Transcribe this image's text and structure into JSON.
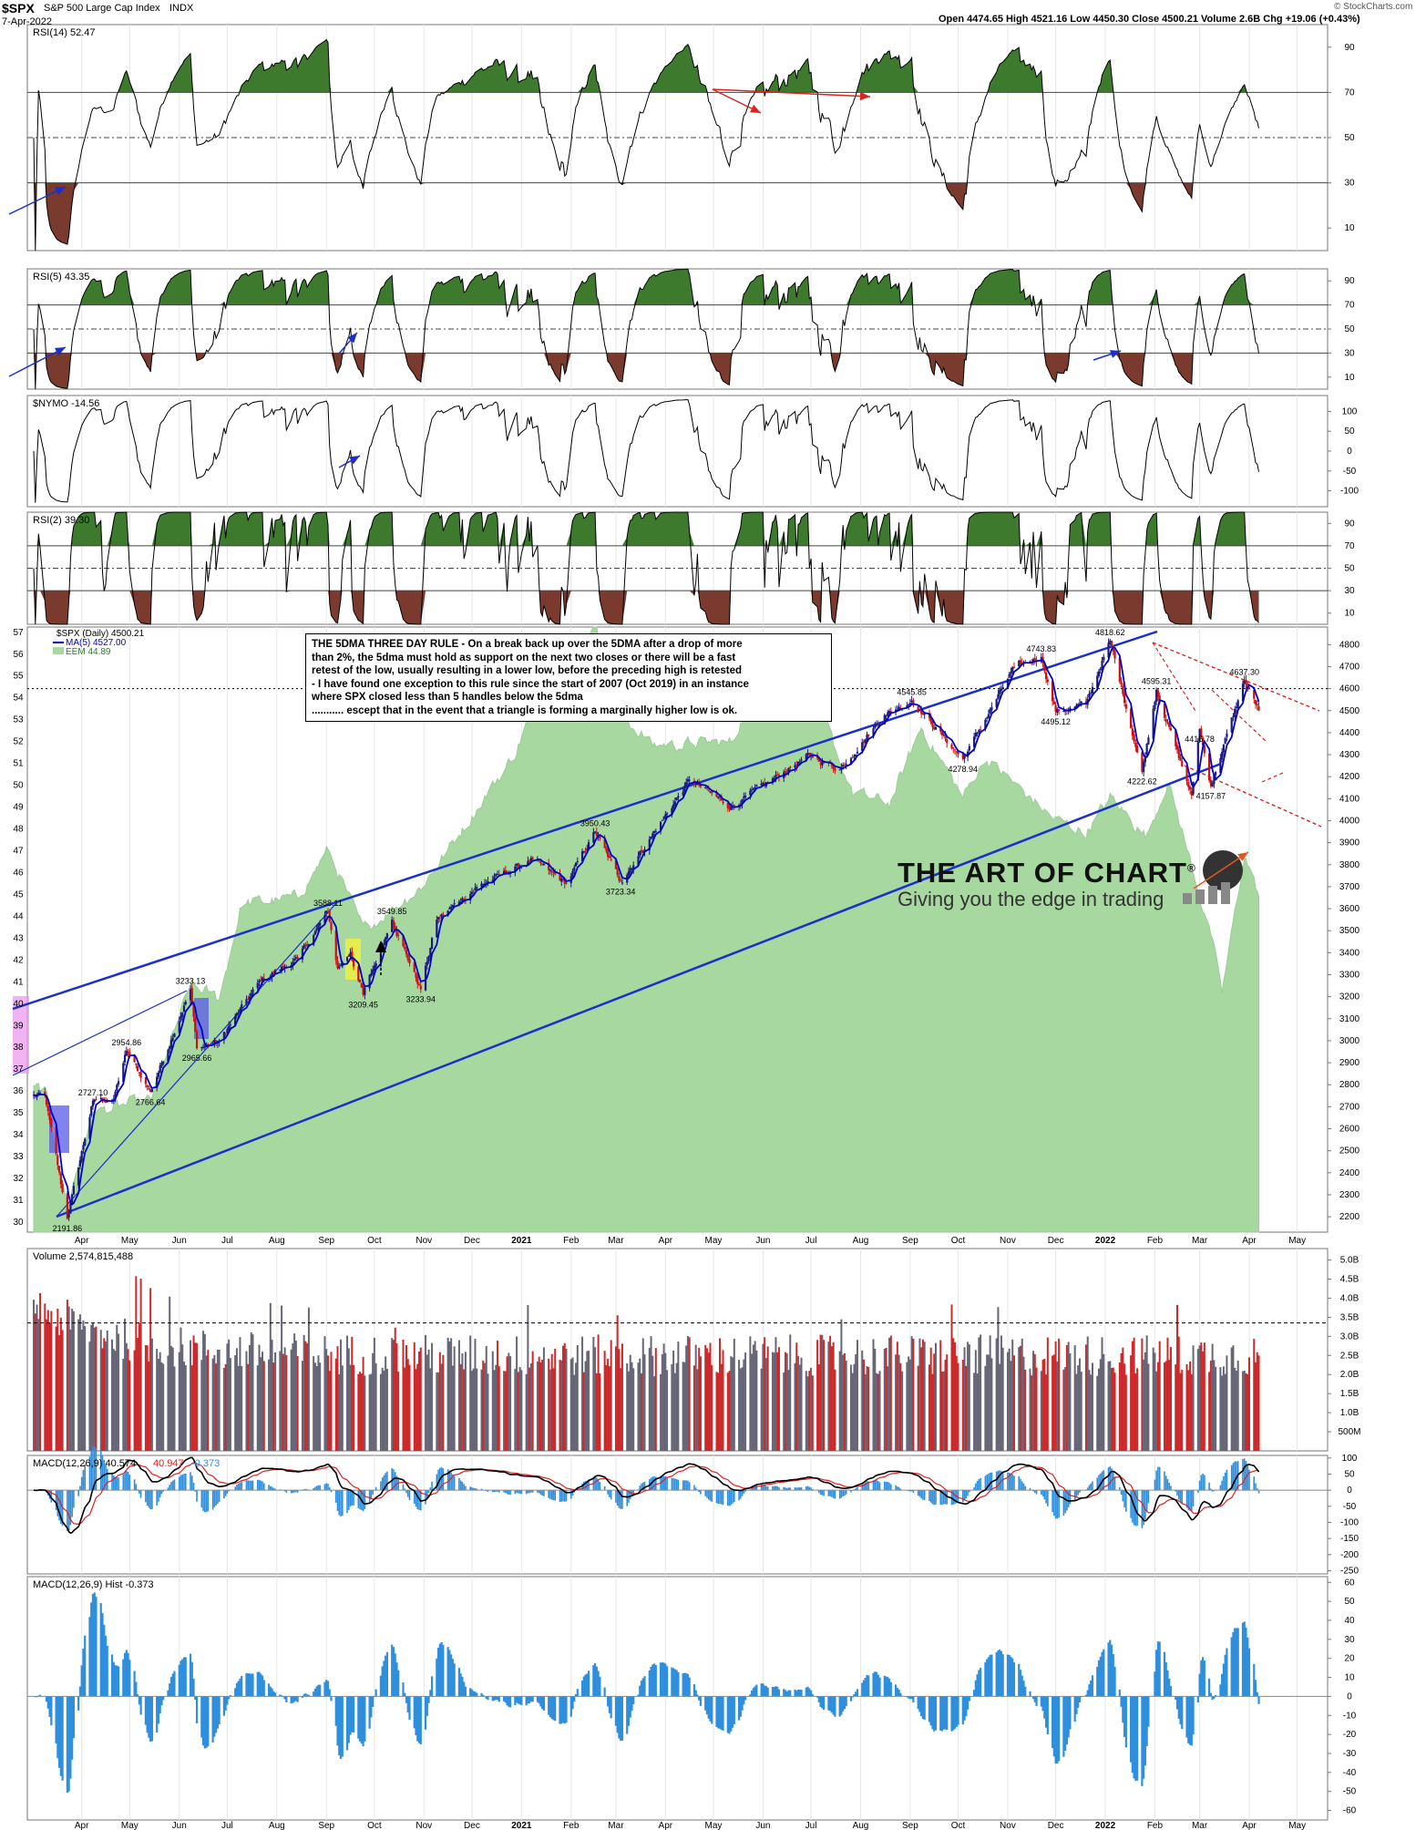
{
  "header": {
    "symbol": "$SPX",
    "name": "S&P 500 Large Cap Index",
    "exchange": "INDX",
    "date": "7-Apr-2022",
    "quote": "Open 4474.65  High 4521.16  Low 4450.30  Close 4500.21  Volume 2.6B  Chg +19.06 (+0.43%)",
    "credit": "© StockCharts.com"
  },
  "annotation": {
    "lines": [
      "THE 5DMA THREE DAY RULE - On a break back up over the 5DMA after a drop of more",
      "than 2%, the 5dma must hold as support on the next two closes or there will be a fast",
      "retest of the low, usually resulting in a lower low, before the preceding high is retested",
      "- I have found one exception to this rule since the start of 2007 (Oct 2019) in an instance",
      "where SPX closed less than 5 handles below the 5dma",
      "........... escept that in the event that a triangle is forming a marginally higher low is ok."
    ]
  },
  "brand": {
    "title": "THE ART OF CHART",
    "reg": "®",
    "tagline": "Giving you the edge in trading"
  },
  "colors": {
    "price_up": "#1a1a7a",
    "price_down": "#cc1111",
    "ma5": "#0000cc",
    "eem_fill": "#a6d8a0",
    "trendline": "#1a2fcc",
    "resistance": "#dd2222",
    "rsi_overbought": "#3d7a2e",
    "rsi_oversold": "#7a3a2e",
    "vol_up": "#666677",
    "vol_down": "#cc2a2a",
    "macd_line": "#000000",
    "macd_signal": "#dd2222",
    "macd_hist": "#2f8fdd",
    "lilac": "#ee99ee",
    "blue_box": "#5a5ae8",
    "yellow_box": "#f0f040"
  },
  "chart_data": [
    {
      "type": "line",
      "title": "RSI(14) 52.47",
      "ylim": [
        0,
        100
      ],
      "yticks": [
        10,
        30,
        50,
        70,
        90
      ],
      "reference_lines": [
        30,
        50,
        70
      ],
      "last_value": 52.47
    },
    {
      "type": "line",
      "title": "RSI(5) 43.35",
      "ylim": [
        0,
        100
      ],
      "yticks": [
        10,
        30,
        50,
        70,
        90
      ],
      "reference_lines": [
        30,
        50,
        70
      ],
      "last_value": 43.35
    },
    {
      "type": "line",
      "title": "$NYMO -14.56",
      "ylim": [
        -140,
        140
      ],
      "yticks": [
        -100,
        -50,
        0,
        50,
        100
      ],
      "last_value": -14.56
    },
    {
      "type": "line",
      "title": "RSI(2) 39.30",
      "ylim": [
        0,
        100
      ],
      "yticks": [
        10,
        30,
        50,
        70,
        90
      ],
      "reference_lines": [
        30,
        50,
        70
      ],
      "last_value": 39.3
    },
    {
      "type": "candlestick",
      "title": "$SPX (Daily) 4500.21",
      "legend": [
        "$SPX (Daily) 4500.21",
        "MA(5) 4527.00",
        "EEM 44.89"
      ],
      "y_right_ticks": [
        2200,
        2300,
        2400,
        2500,
        2600,
        2700,
        2800,
        2900,
        3000,
        3100,
        3200,
        3300,
        3400,
        3500,
        3600,
        3700,
        3800,
        3900,
        4000,
        4100,
        4200,
        4300,
        4400,
        4500,
        4600,
        4700,
        4800
      ],
      "y_left_ticks": [
        30,
        31,
        32,
        33,
        34,
        35,
        36,
        37,
        38,
        39,
        40,
        41,
        42,
        43,
        44,
        45,
        46,
        47,
        48,
        49,
        50,
        51,
        52,
        53,
        54,
        55,
        56,
        57
      ],
      "ylim_right": [
        2130,
        4880
      ],
      "ylim_left": [
        29.5,
        57.2
      ],
      "x_labels": [
        "Apr",
        "May",
        "Jun",
        "Jul",
        "Aug",
        "Sep",
        "Oct",
        "Nov",
        "Dec",
        "2021",
        "Feb",
        "Mar",
        "Apr",
        "May",
        "Jun",
        "Jul",
        "Aug",
        "Sep",
        "Oct",
        "Nov",
        "Dec",
        "2022",
        "Feb",
        "Mar",
        "Apr",
        "May"
      ],
      "spx_anchors": [
        [
          "2020-03-09",
          2750
        ],
        [
          "2020-03-23",
          2191.86
        ],
        [
          "2020-04-08",
          2727.1
        ],
        [
          "2020-04-21",
          2736
        ],
        [
          "2020-04-29",
          2954.86
        ],
        [
          "2020-05-14",
          2766.64
        ],
        [
          "2020-06-08",
          3233.13
        ],
        [
          "2020-06-12",
          2965.66
        ],
        [
          "2020-06-26",
          3000
        ],
        [
          "2020-07-22",
          3275
        ],
        [
          "2020-08-14",
          3372
        ],
        [
          "2020-09-02",
          3588.11
        ],
        [
          "2020-09-08",
          3330
        ],
        [
          "2020-09-16",
          3400
        ],
        [
          "2020-09-24",
          3209.45
        ],
        [
          "2020-10-12",
          3549.85
        ],
        [
          "2020-10-30",
          3233.94
        ],
        [
          "2020-11-09",
          3550
        ],
        [
          "2020-12-04",
          3699
        ],
        [
          "2021-01-08",
          3824
        ],
        [
          "2021-01-29",
          3714
        ],
        [
          "2021-02-16",
          3950.43
        ],
        [
          "2021-03-04",
          3723.34
        ],
        [
          "2021-04-16",
          4185
        ],
        [
          "2021-05-12",
          4063
        ],
        [
          "2021-06-30",
          4297
        ],
        [
          "2021-07-19",
          4233
        ],
        [
          "2021-08-16",
          4480
        ],
        [
          "2021-09-02",
          4545.85
        ],
        [
          "2021-10-04",
          4278.94
        ],
        [
          "2021-11-05",
          4697
        ],
        [
          "2021-11-22",
          4743.83
        ],
        [
          "2021-12-01",
          4495.12
        ],
        [
          "2021-12-20",
          4531
        ],
        [
          "2022-01-04",
          4818.62
        ],
        [
          "2022-01-24",
          4222.62
        ],
        [
          "2022-02-02",
          4595.31
        ],
        [
          "2022-02-24",
          4114
        ],
        [
          "2022-03-01",
          4415.78
        ],
        [
          "2022-03-08",
          4157.87
        ],
        [
          "2022-03-29",
          4637.3
        ],
        [
          "2022-04-07",
          4500.21
        ]
      ],
      "eem_anchors": [
        [
          "2020-03-09",
          36
        ],
        [
          "2020-03-23",
          30.7
        ],
        [
          "2020-04-08",
          35
        ],
        [
          "2020-05-14",
          35.5
        ],
        [
          "2020-06-08",
          40.8
        ],
        [
          "2020-06-26",
          40.2
        ],
        [
          "2020-07-10",
          44.5
        ],
        [
          "2020-08-14",
          44.8
        ],
        [
          "2020-09-02",
          47
        ],
        [
          "2020-09-24",
          43.3
        ],
        [
          "2020-10-30",
          45.3
        ],
        [
          "2020-11-16",
          47
        ],
        [
          "2020-12-28",
          51.4
        ],
        [
          "2021-01-08",
          53.6
        ],
        [
          "2021-02-16",
          57.5
        ],
        [
          "2021-03-04",
          53.2
        ],
        [
          "2021-03-24",
          51.8
        ],
        [
          "2021-05-12",
          51.9
        ],
        [
          "2021-06-01",
          55.2
        ],
        [
          "2021-06-30",
          54.6
        ],
        [
          "2021-07-27",
          49.6
        ],
        [
          "2021-08-19",
          49.1
        ],
        [
          "2021-09-08",
          52.6
        ],
        [
          "2021-10-04",
          49.4
        ],
        [
          "2021-10-18",
          51.2
        ],
        [
          "2021-11-30",
          48.4
        ],
        [
          "2021-12-20",
          47.8
        ],
        [
          "2022-01-04",
          49.4
        ],
        [
          "2022-01-27",
          47.6
        ],
        [
          "2022-02-09",
          50.2
        ],
        [
          "2022-03-08",
          43.1
        ],
        [
          "2022-03-15",
          40.4
        ],
        [
          "2022-03-29",
          46.8
        ],
        [
          "2022-04-07",
          44.89
        ]
      ],
      "price_labels": [
        "2191.86",
        "2727.10",
        "2954.86",
        "2766.64",
        "3233.13",
        "2965.66",
        "3588.11",
        "3549.85",
        "3209.45",
        "3233.94",
        "3950.43",
        "3723.34",
        "4545.85",
        "4278.94",
        "4743.83",
        "4495.12",
        "4818.62",
        "4595.31",
        "4415.78",
        "4222.62",
        "4157.87",
        "4637.30"
      ]
    },
    {
      "type": "bar",
      "title": "Volume 2,574,815,488",
      "yticks_labels": [
        "500M",
        "1.0B",
        "1.5B",
        "2.0B",
        "2.5B",
        "3.0B",
        "3.5B",
        "4.0B",
        "4.5B",
        "5.0B"
      ],
      "yticks": [
        0.5,
        1.0,
        1.5,
        2.0,
        2.5,
        3.0,
        3.5,
        4.0,
        4.5,
        5.0
      ],
      "ylim": [
        0,
        5.3
      ],
      "unit": "B",
      "reference_line": 3.35,
      "last_value": 2.57
    },
    {
      "type": "line",
      "title": "MACD(12,26,9) 40.574, 40.947, -0.373",
      "legend": [
        "MACD(12,26,9) 40.574",
        "40.947",
        "-0.373"
      ],
      "yticks": [
        -250,
        -200,
        -150,
        -100,
        -50,
        0,
        50,
        100
      ],
      "ylim": [
        -260,
        108
      ],
      "last_values": {
        "macd": 40.574,
        "signal": 40.947,
        "hist": -0.373
      }
    },
    {
      "type": "bar",
      "title": "MACD(12,26,9) Hist -0.373",
      "yticks": [
        -60,
        -50,
        -40,
        -30,
        -20,
        -10,
        0,
        10,
        20,
        30,
        40,
        50,
        60
      ],
      "ylim": [
        -65,
        63
      ],
      "last_value": -0.373
    }
  ]
}
